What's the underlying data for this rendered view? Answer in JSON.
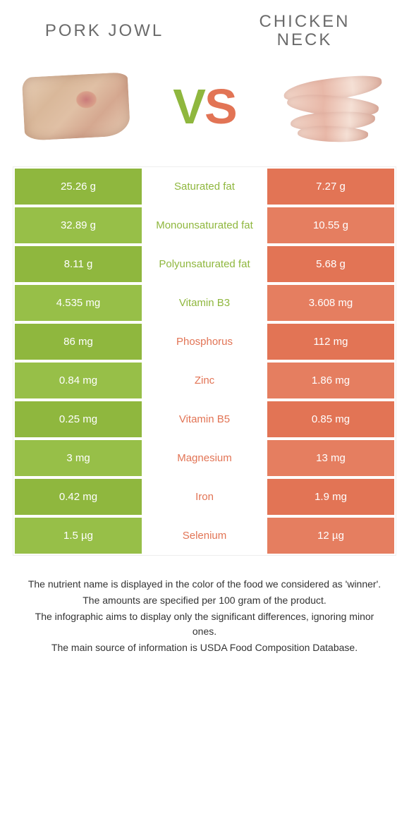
{
  "colors": {
    "green": "#8fb73e",
    "orange": "#e27455",
    "green_alt": "#97bf48",
    "orange_alt": "#e57e60"
  },
  "header": {
    "left": "Pork Jowl",
    "right": "Chicken Neck",
    "vs_v": "V",
    "vs_s": "S"
  },
  "rows": [
    {
      "label": "Saturated fat",
      "left": "25.26 g",
      "right": "7.27 g",
      "winner": "left"
    },
    {
      "label": "Monounsaturated fat",
      "left": "32.89 g",
      "right": "10.55 g",
      "winner": "left"
    },
    {
      "label": "Polyunsaturated fat",
      "left": "8.11 g",
      "right": "5.68 g",
      "winner": "left"
    },
    {
      "label": "Vitamin B3",
      "left": "4.535 mg",
      "right": "3.608 mg",
      "winner": "left"
    },
    {
      "label": "Phosphorus",
      "left": "86 mg",
      "right": "112 mg",
      "winner": "right"
    },
    {
      "label": "Zinc",
      "left": "0.84 mg",
      "right": "1.86 mg",
      "winner": "right"
    },
    {
      "label": "Vitamin B5",
      "left": "0.25 mg",
      "right": "0.85 mg",
      "winner": "right"
    },
    {
      "label": "Magnesium",
      "left": "3 mg",
      "right": "13 mg",
      "winner": "right"
    },
    {
      "label": "Iron",
      "left": "0.42 mg",
      "right": "1.9 mg",
      "winner": "right"
    },
    {
      "label": "Selenium",
      "left": "1.5 µg",
      "right": "12 µg",
      "winner": "right"
    }
  ],
  "footer": [
    "The nutrient name is displayed in the color of the food we considered as 'winner'.",
    "The amounts are specified per 100 gram of the product.",
    "The infographic aims to display only the significant differences, ignoring minor ones.",
    "The main source of information is USDA Food Composition Database."
  ]
}
